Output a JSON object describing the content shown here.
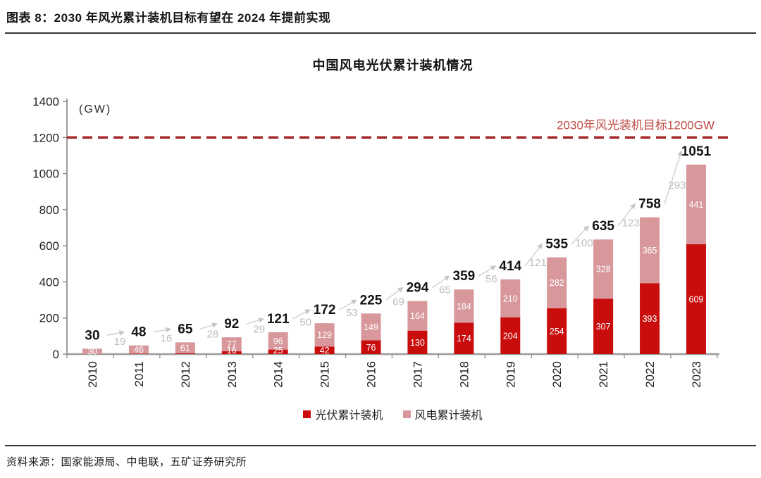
{
  "header": {
    "title": "图表 8：2030 年风光累计装机目标有望在 2024 年提前实现"
  },
  "chart_data": {
    "type": "bar",
    "stacked": true,
    "title": "中国风电光伏累计装机情况",
    "unit_label": "(GW)",
    "categories": [
      "2010",
      "2011",
      "2012",
      "2013",
      "2014",
      "2015",
      "2016",
      "2017",
      "2018",
      "2019",
      "2020",
      "2021",
      "2022",
      "2023"
    ],
    "series": [
      {
        "name": "光伏累计装机",
        "color": "#C90D0D",
        "values": [
          0,
          2,
          4,
          16,
          25,
          42,
          76,
          130,
          174,
          204,
          254,
          307,
          393,
          609
        ],
        "labels": [
          null,
          null,
          null,
          "16",
          "25",
          "42",
          "76",
          "130",
          "174",
          "204",
          "254",
          "307",
          "393",
          "609"
        ]
      },
      {
        "name": "风电累计装机",
        "color": "#D8989B",
        "values": [
          30,
          46,
          61,
          77,
          96,
          129,
          149,
          164,
          184,
          210,
          282,
          328,
          365,
          441
        ],
        "labels": [
          "30",
          "46",
          "61",
          "77",
          "96",
          "129",
          "149",
          "164",
          "184",
          "210",
          "282",
          "328",
          "365",
          "441"
        ]
      }
    ],
    "totals": [
      "30",
      "48",
      "65",
      "92",
      "121",
      "172",
      "225",
      "294",
      "359",
      "414",
      "535",
      "635",
      "758",
      "1051"
    ],
    "increments": [
      "19",
      "16",
      "28",
      "29",
      "50",
      "53",
      "69",
      "65",
      "56",
      "121",
      "100",
      "123",
      "293"
    ],
    "target_line": {
      "value": 1200,
      "label": "2030年风光装机目标1200GW",
      "line_color": "#A3292B",
      "label_color": "#BE4A42"
    },
    "y_axis": {
      "min": 0,
      "max": 1400,
      "step": 200,
      "ticks": [
        "0",
        "200",
        "400",
        "600",
        "800",
        "1000",
        "1200",
        "1400"
      ]
    },
    "xlabel": "",
    "ylabel": "(GW)",
    "grid": false,
    "legend_position": "bottom"
  },
  "legend": {
    "items": [
      {
        "label": "光伏累计装机",
        "color": "#C90D0D"
      },
      {
        "label": "风电累计装机",
        "color": "#D8989B"
      }
    ]
  },
  "footer": {
    "source": "资料来源：国家能源局、中电联，五矿证券研究所"
  }
}
